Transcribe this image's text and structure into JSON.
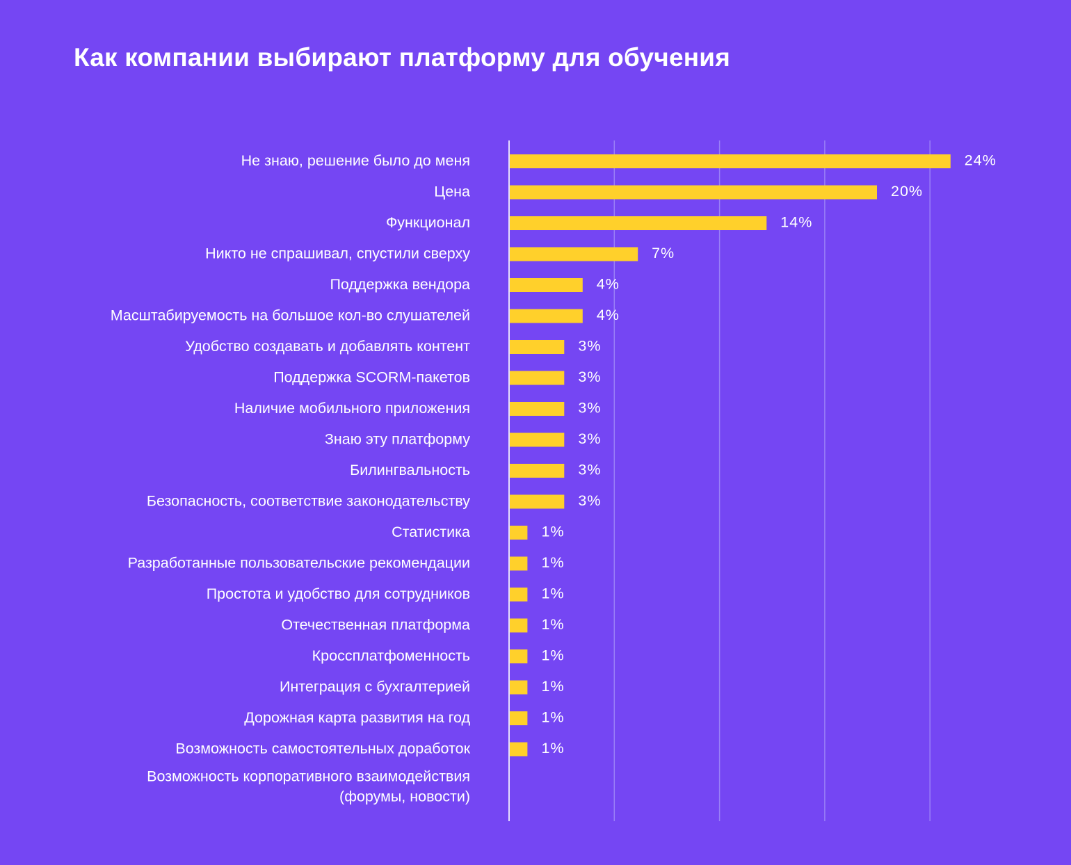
{
  "chart_data": {
    "type": "bar",
    "orientation": "horizontal",
    "title": "Как компании выбирают платформу для обучения",
    "xlabel": "",
    "ylabel": "",
    "xlim": [
      0,
      24
    ],
    "grid": true,
    "categories": [
      "Не знаю, решение было до меня",
      "Цена",
      "Функционал",
      "Никто не спрашивал, спустили сверху",
      "Поддержка вендора",
      "Масштабируемость на большое кол-во слушателей",
      "Удобство создавать и добавлять контент",
      "Поддержка SCORM-пакетов",
      "Наличие мобильного приложения",
      "Знаю эту платформу",
      "Билингвальность",
      "Безопасность, соответствие законодательству",
      "Статистика",
      "Разработанные пользовательские рекомендации",
      "Простота и удобство для сотрудников",
      "Отечественная платформа",
      "Кроссплатфоменность",
      "Интеграция с бухгалтерией",
      "Дорожная карта развития на год",
      "Возможность самостоятельных доработок",
      "Возможность корпоративного взаимодействия\n(форумы, новости)"
    ],
    "values": [
      24,
      20,
      14,
      7,
      4,
      4,
      3,
      3,
      3,
      3,
      3,
      3,
      1,
      1,
      1,
      1,
      1,
      1,
      1,
      1,
      null
    ],
    "value_labels": [
      "24%",
      "20%",
      "14%",
      "7%",
      "4%",
      "4%",
      "3%",
      "3%",
      "3%",
      "3%",
      "3%",
      "3%",
      "1%",
      "1%",
      "1%",
      "1%",
      "1%",
      "1%",
      "1%",
      "1%",
      ""
    ],
    "colors": {
      "background": "#7546f3",
      "bar": "#ffd02b",
      "grid": "#9a80f7",
      "axis": "#e6defe",
      "text": "#ffffff"
    }
  }
}
